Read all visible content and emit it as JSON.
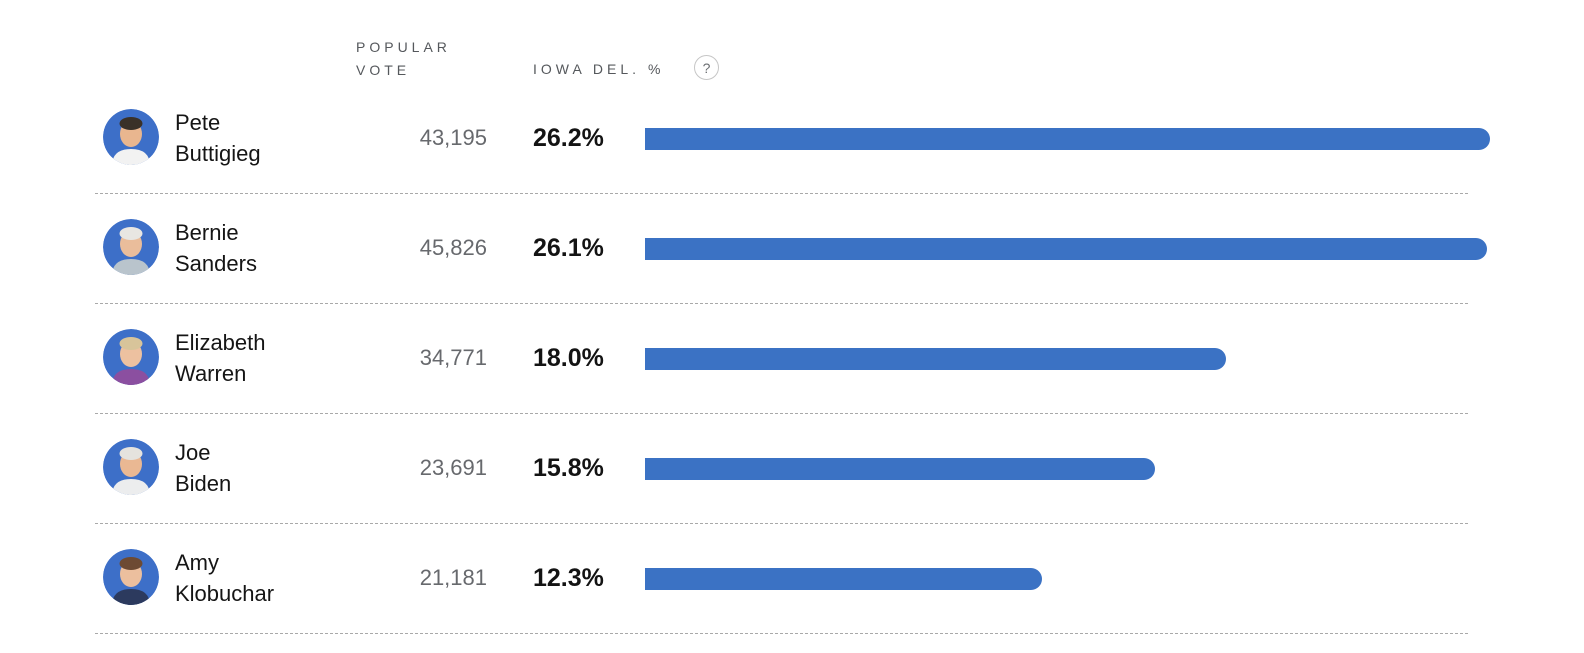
{
  "header": {
    "popular_vote_label": "POPULAR\nVOTE",
    "iowa_del_label": "IOWA DEL. %",
    "help_icon": "?"
  },
  "colors": {
    "bar_blue": "#3b72c4",
    "avatar_bg": "#3d6fc8",
    "divider_gray": "#a9a9a9",
    "vote_gray": "#67696d",
    "header_gray": "#55585c",
    "text_black": "#151515"
  },
  "chart_data": {
    "type": "bar",
    "orientation": "horizontal",
    "categories": [
      "Pete Buttigieg",
      "Bernie Sanders",
      "Elizabeth Warren",
      "Joe Biden",
      "Amy Klobuchar"
    ],
    "series": [
      {
        "name": "Popular vote",
        "values": [
          43195,
          45826,
          34771,
          23691,
          21181
        ]
      },
      {
        "name": "Iowa del. %",
        "values": [
          26.2,
          26.1,
          18.0,
          15.8,
          12.3
        ]
      }
    ],
    "title": "",
    "xlabel": "Iowa del. %",
    "ylabel": "",
    "xlim": [
      0,
      26.2
    ],
    "grid": false,
    "legend_position": "none",
    "bar_color": "#3b72c4"
  },
  "rows": [
    {
      "first_name": "Pete",
      "last_name": "Buttigieg",
      "vote": "43,195",
      "pct_label": "26.2%",
      "pct_value": 26.2,
      "avatar": {
        "bg": "#3d6fc8",
        "skin": "#e9b68f",
        "hair": "#3a3128",
        "shirt": "#f2f2f2"
      }
    },
    {
      "first_name": "Bernie",
      "last_name": "Sanders",
      "vote": "45,826",
      "pct_label": "26.1%",
      "pct_value": 26.1,
      "avatar": {
        "bg": "#3d6fc8",
        "skin": "#eabd9b",
        "hair": "#e8e6e2",
        "shirt": "#b9c4cc"
      }
    },
    {
      "first_name": "Elizabeth",
      "last_name": "Warren",
      "vote": "34,771",
      "pct_label": "18.0%",
      "pct_value": 18.0,
      "avatar": {
        "bg": "#3d6fc8",
        "skin": "#edc1a0",
        "hair": "#d8c49a",
        "shirt": "#8b4fa0"
      }
    },
    {
      "first_name": "Joe",
      "last_name": "Biden",
      "vote": "23,691",
      "pct_label": "15.8%",
      "pct_value": 15.8,
      "avatar": {
        "bg": "#3d6fc8",
        "skin": "#eab893",
        "hair": "#e5e3de",
        "shirt": "#ecedee"
      }
    },
    {
      "first_name": "Amy",
      "last_name": "Klobuchar",
      "vote": "21,181",
      "pct_label": "12.3%",
      "pct_value": 12.3,
      "avatar": {
        "bg": "#3d6fc8",
        "skin": "#ecbf9e",
        "hair": "#6d4a33",
        "shirt": "#2c3a5e"
      }
    }
  ]
}
